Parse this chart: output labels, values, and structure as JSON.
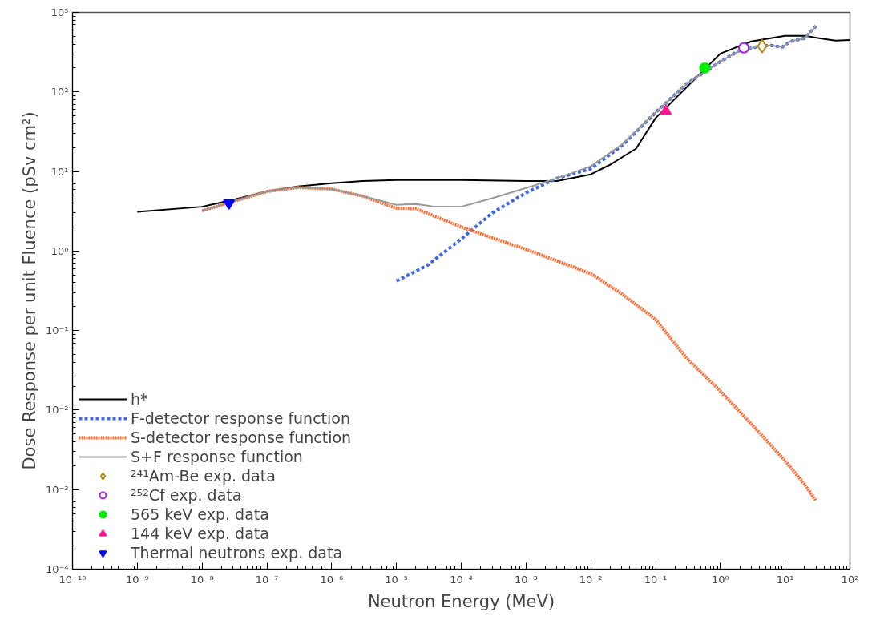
{
  "chart_data": {
    "type": "line",
    "xlabel": "Neutron Energy (MeV)",
    "ylabel": "Dose Response per unit Fluence (pSv cm²)",
    "log": "xy",
    "grid": false,
    "legend": "bottom left",
    "xlim": [
      1e-10,
      100
    ],
    "ylim": [
      0.0001,
      1000
    ],
    "xticks": [
      {
        "value": 1e-10,
        "label": "10⁻¹⁰"
      },
      {
        "value": 1e-09,
        "label": "10⁻⁹"
      },
      {
        "value": 1e-08,
        "label": "10⁻⁸"
      },
      {
        "value": 1e-07,
        "label": "10⁻⁷"
      },
      {
        "value": 1e-06,
        "label": "10⁻⁶"
      },
      {
        "value": 1e-05,
        "label": "10⁻⁵"
      },
      {
        "value": 0.0001,
        "label": "10⁻⁴"
      },
      {
        "value": 0.001,
        "label": "10⁻³"
      },
      {
        "value": 0.01,
        "label": "10⁻²"
      },
      {
        "value": 0.1,
        "label": "10⁻¹"
      },
      {
        "value": 1,
        "label": "10⁰"
      },
      {
        "value": 10,
        "label": "10¹"
      },
      {
        "value": 100,
        "label": "10²"
      }
    ],
    "yticks": [
      {
        "value": 0.0001,
        "label": "10⁻⁴"
      },
      {
        "value": 0.001,
        "label": "10⁻³"
      },
      {
        "value": 0.01,
        "label": "10⁻²"
      },
      {
        "value": 0.1,
        "label": "10⁻¹"
      },
      {
        "value": 1,
        "label": "10⁰"
      },
      {
        "value": 10,
        "label": "10¹"
      },
      {
        "value": 100,
        "label": "10²"
      },
      {
        "value": 1000,
        "label": "10³"
      }
    ],
    "series": [
      {
        "name": "h*",
        "line_style": "solid",
        "color": "#000000",
        "x": [
          1e-09,
          1e-08,
          3e-08,
          1e-07,
          3e-07,
          1e-06,
          3e-06,
          1e-05,
          0.0001,
          0.001,
          0.003,
          0.01,
          0.02,
          0.05,
          0.1,
          0.3,
          1,
          3,
          10,
          20,
          40,
          60,
          100
        ],
        "values": [
          3.1,
          3.6,
          4.4,
          5.6,
          6.5,
          7.1,
          7.6,
          7.8,
          7.8,
          7.6,
          7.6,
          9.2,
          12.2,
          19.4,
          47,
          114,
          304,
          431,
          508,
          508,
          463,
          442,
          450
        ]
      },
      {
        "name": "F-detector response function",
        "line_style": "dashed",
        "color": "#4169e1",
        "x": [
          1e-05,
          3e-05,
          0.0001,
          0.0003,
          0.001,
          0.003,
          0.01,
          0.03,
          0.1,
          0.3,
          1,
          2,
          4,
          6,
          9,
          12,
          20,
          30
        ],
        "values": [
          0.42,
          0.66,
          1.42,
          3.0,
          5.4,
          8.2,
          10.8,
          21,
          55,
          126,
          241,
          334,
          375,
          385,
          366,
          431,
          474,
          676
        ]
      },
      {
        "name": "S-detector response function",
        "line_style": "dotted",
        "color": "#ff6a33",
        "x": [
          1e-08,
          2.5e-08,
          1e-07,
          3e-07,
          1e-06,
          3e-06,
          1e-05,
          2e-05,
          0.0001,
          0.001,
          0.01,
          0.03,
          0.1,
          0.3,
          1,
          3,
          10,
          20,
          30
        ],
        "values": [
          3.2,
          4.0,
          5.6,
          6.3,
          6.0,
          4.9,
          3.45,
          3.4,
          2.0,
          1.05,
          0.52,
          0.29,
          0.138,
          0.045,
          0.0173,
          0.0067,
          0.0023,
          0.00116,
          0.00072
        ]
      },
      {
        "name": "S+F response function",
        "line_style": "solid",
        "color": "#999999",
        "x": [
          1e-08,
          2.5e-08,
          1e-07,
          3e-07,
          1e-06,
          3e-06,
          1e-05,
          2e-05,
          4e-05,
          0.0001,
          0.0003,
          0.001,
          0.003,
          0.01,
          0.03,
          0.1,
          0.3,
          1,
          2,
          4,
          6,
          9,
          12,
          20,
          30
        ],
        "values": [
          3.2,
          4.0,
          5.6,
          6.3,
          6.0,
          4.9,
          3.8,
          3.9,
          3.6,
          3.6,
          4.6,
          6.2,
          8.2,
          11.6,
          21.8,
          55,
          126,
          241,
          334,
          375,
          385,
          366,
          431,
          474,
          676
        ]
      },
      {
        "name": "²⁴¹Am-Be exp. data",
        "type": "scatter",
        "marker": "diamond_open",
        "color": "#b8860b",
        "x": [
          4.4
        ],
        "values": [
          375
        ]
      },
      {
        "name": "²⁵²Cf exp. data",
        "type": "scatter",
        "marker": "circle_open",
        "color": "#a020f0",
        "x": [
          2.3
        ],
        "values": [
          358
        ]
      },
      {
        "name": "565 keV exp. data",
        "type": "scatter",
        "marker": "circle",
        "color": "#00ee00",
        "x": [
          0.575
        ],
        "values": [
          200
        ]
      },
      {
        "name": "144 keV exp. data",
        "type": "scatter",
        "marker": "triangle",
        "color": "#ff1493",
        "x": [
          0.144
        ],
        "values": [
          57
        ]
      },
      {
        "name": "Thermal neutrons exp. data",
        "type": "scatter",
        "marker": "triangle_down",
        "color": "#0000ff",
        "x": [
          2.6e-08
        ],
        "values": [
          4.0
        ]
      }
    ]
  }
}
